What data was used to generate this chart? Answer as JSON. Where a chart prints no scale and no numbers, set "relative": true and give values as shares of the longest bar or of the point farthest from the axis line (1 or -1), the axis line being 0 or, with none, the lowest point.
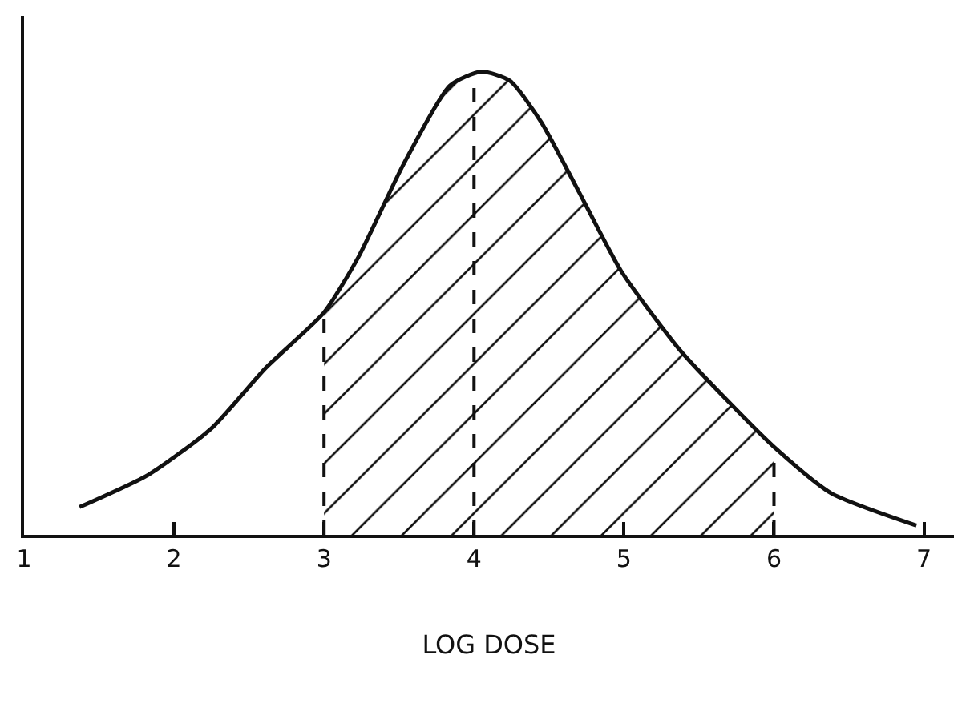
{
  "chart_data": {
    "type": "line",
    "relative": true,
    "xlabel": "LOG DOSE",
    "x": [
      1.37,
      1.83,
      2.25,
      2.61,
      3,
      3.23,
      3.53,
      3.84,
      4.05,
      4.24,
      4.45,
      4.7,
      4.98,
      5.37,
      5.75,
      6,
      6.38,
      6.95
    ],
    "series": [
      {
        "type": "area",
        "color": "#111111",
        "x": [
          3,
          3.23,
          3.53,
          3.84,
          4.05,
          4.24,
          4.45,
          4.7,
          4.98,
          5.37,
          5.75,
          6
        ],
        "values": [
          0.48,
          0.6,
          0.8,
          0.97,
          1,
          0.98,
          0.89,
          0.74,
          0.57,
          0.4,
          0.27,
          0.19
        ]
      },
      {
        "color": "#111111",
        "values": [
          0.06,
          0.13,
          0.23,
          0.36,
          0.48,
          0.6,
          0.8,
          0.97,
          1,
          0.98,
          0.89,
          0.74,
          0.57,
          0.4,
          0.27,
          0.19,
          0.09,
          0.02
        ]
      }
    ],
    "xlim": [
      1,
      7.2
    ],
    "xticks": [
      1,
      2,
      3,
      4,
      5,
      6,
      7
    ],
    "ref_lines": [
      {
        "axis": "x",
        "value": 3,
        "line_style": "dashed"
      },
      {
        "axis": "x",
        "value": 4,
        "line_style": "dashed"
      },
      {
        "axis": "x",
        "value": 6,
        "line_style": "dashed"
      }
    ],
    "grid": false
  }
}
